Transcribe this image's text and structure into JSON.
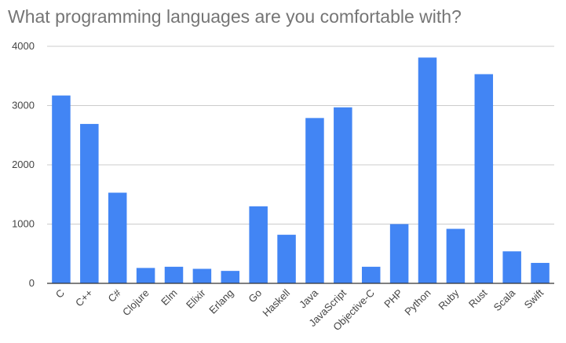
{
  "chart_data": {
    "type": "bar",
    "title": "What programming languages are you comfortable with?",
    "xlabel": "",
    "ylabel": "",
    "categories": [
      "C",
      "C++",
      "C#",
      "Clojure",
      "Elm",
      "Elixir",
      "Erlang",
      "Go",
      "Haskell",
      "Java",
      "JavaScript",
      "Objective-C",
      "PHP",
      "Python",
      "Ruby",
      "Rust",
      "Scala",
      "Swift"
    ],
    "values": [
      3170,
      2690,
      1530,
      260,
      280,
      245,
      210,
      1300,
      820,
      2790,
      2970,
      280,
      1000,
      3810,
      920,
      3530,
      540,
      345
    ],
    "ylim": [
      0,
      4000
    ],
    "yticks": [
      0,
      1000,
      2000,
      3000,
      4000
    ],
    "grid": true,
    "bar_color": "#4285f4",
    "legend": "none"
  }
}
